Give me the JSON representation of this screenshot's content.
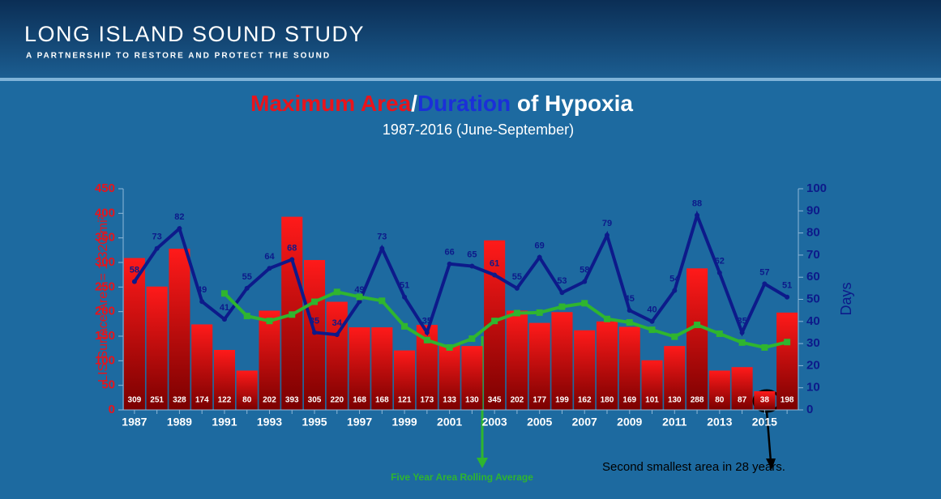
{
  "header": {
    "title": "LONG ISLAND SOUND STUDY",
    "subtitle": "A PARTNERSHIP TO RESTORE AND PROTECT THE SOUND"
  },
  "chart_data": {
    "type": "bar",
    "title_parts": [
      {
        "text": "Maximum Area",
        "color": "#e8141b"
      },
      {
        "text": "/",
        "color": "#ffffff"
      },
      {
        "text": "Duration",
        "color": "#1b2fd8"
      },
      {
        "text": " of Hypoxia",
        "color": "#ffffff"
      }
    ],
    "subtitle": "1987-2016 (June-September)",
    "ylabel": "LIS Surface Area = 1,320 mi²",
    "y2label": "Days",
    "categories": [
      "1987",
      "1988",
      "1989",
      "1990",
      "1991",
      "1992",
      "1993",
      "1994",
      "1995",
      "1996",
      "1997",
      "1998",
      "1999",
      "2000",
      "2001",
      "2002",
      "2003",
      "2004",
      "2005",
      "2006",
      "2007",
      "2008",
      "2009",
      "2010",
      "2011",
      "2012",
      "2013",
      "2014",
      "2015",
      "2016"
    ],
    "series": [
      {
        "type": "bar",
        "color": "#e0141b",
        "values": [
          309,
          251,
          328,
          174,
          122,
          80,
          202,
          393,
          305,
          220,
          168,
          168,
          121,
          173,
          133,
          130,
          345,
          202,
          177,
          199,
          162,
          180,
          169,
          101,
          130,
          288,
          80,
          87,
          38,
          198
        ]
      },
      {
        "type": "line",
        "axis": "y2",
        "color": "#0d1a8a",
        "values": [
          58,
          73,
          82,
          49,
          41,
          55,
          64,
          68,
          35,
          34,
          49,
          73,
          51,
          35,
          66,
          65,
          61,
          55,
          69,
          53,
          58,
          79,
          45,
          40,
          54,
          88,
          62,
          35,
          57,
          51
        ]
      },
      {
        "type": "line",
        "color": "#2fb52f",
        "values": [
          null,
          null,
          null,
          null,
          237,
          191,
          181,
          194,
          220,
          240,
          230,
          222,
          170,
          142,
          127,
          145,
          181,
          197,
          198,
          210,
          217,
          185,
          178,
          163,
          149,
          173,
          155,
          137,
          127,
          138
        ]
      }
    ],
    "ylim": [
      0,
      450
    ],
    "yticks": [
      0,
      50,
      100,
      150,
      200,
      250,
      300,
      350,
      400,
      450
    ],
    "y2lim": [
      0,
      100
    ],
    "y2ticks": [
      0,
      10,
      20,
      30,
      40,
      50,
      60,
      70,
      80,
      90,
      100
    ],
    "annotations": [
      "Five Year Area Rolling Average",
      "Second smallest area in 28 years."
    ]
  }
}
